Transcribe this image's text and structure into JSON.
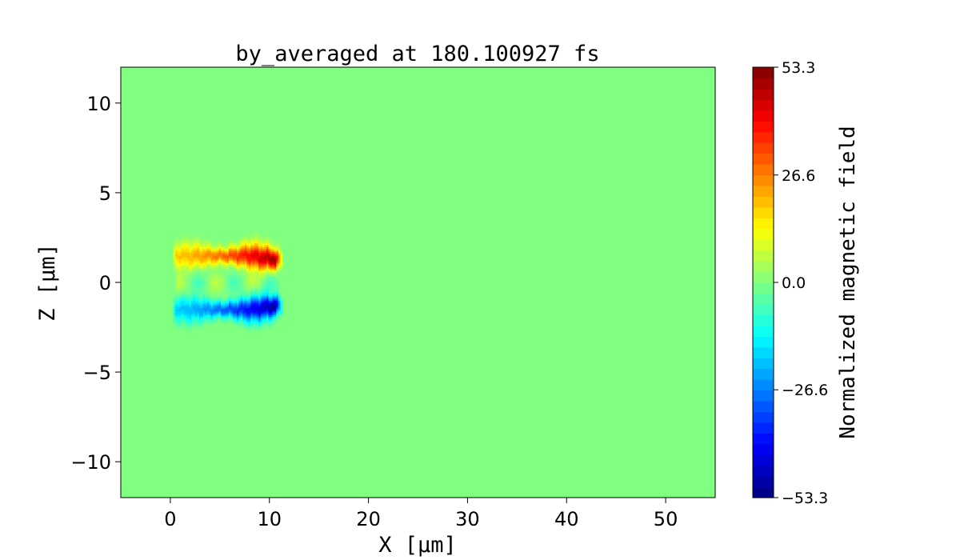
{
  "chart_data": {
    "type": "heatmap",
    "title": "by_averaged at 180.100927 fs",
    "xlabel": "X [μm]",
    "ylabel": "Z [μm]",
    "xlim": [
      -5,
      55
    ],
    "ylim": [
      -12,
      12
    ],
    "xticks": [
      0,
      10,
      20,
      30,
      40,
      50
    ],
    "xtick_labels": [
      "0",
      "10",
      "20",
      "30",
      "40",
      "50"
    ],
    "yticks": [
      10,
      5,
      0,
      -5,
      -10
    ],
    "ytick_labels": [
      "10",
      "5",
      "0",
      "−5",
      "−10"
    ],
    "background_value": 0.0,
    "colormap": "jet",
    "colorbar": {
      "label": "Normalized magnetic field",
      "range": [
        -53.3,
        53.3
      ],
      "ticks": [
        53.3,
        26.6,
        0.0,
        -26.6,
        -53.3
      ],
      "tick_labels": [
        "53.3",
        "26.6",
        "0.0",
        "−26.6",
        "−53.3"
      ],
      "levels": 40
    },
    "features": [
      {
        "name": "positive-lobe",
        "x_range": [
          0.5,
          11.2
        ],
        "z_center": 1.5,
        "z_width": 0.55,
        "peak": 53.3
      },
      {
        "name": "negative-lobe",
        "x_range": [
          0.5,
          11.2
        ],
        "z_center": -1.5,
        "z_width": 0.55,
        "peak": -53.3
      }
    ]
  }
}
